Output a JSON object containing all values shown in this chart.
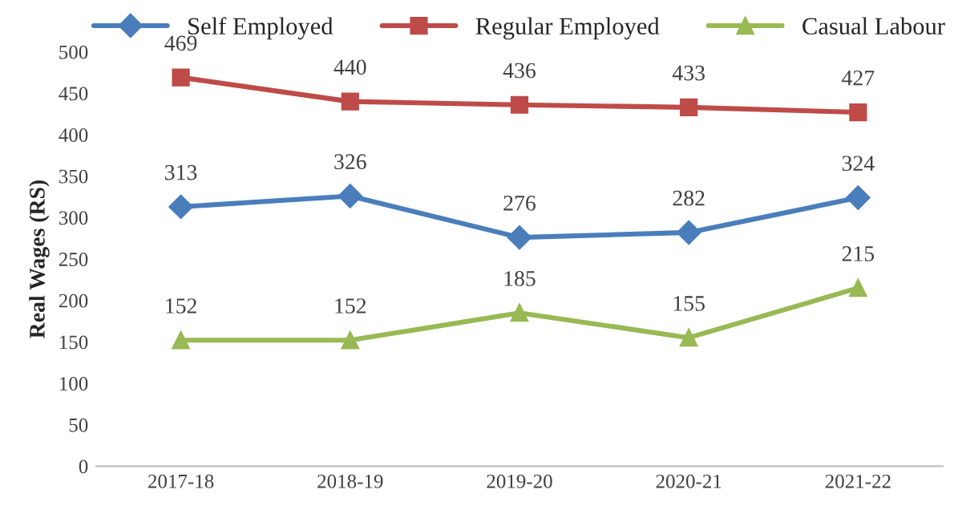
{
  "chart_data": {
    "type": "line",
    "ylabel": "Real Wages (RS)",
    "categories": [
      "2017-18",
      "2018-19",
      "2019-20",
      "2020-21",
      "2021-22"
    ],
    "series": [
      {
        "name": "Self Employed",
        "color": "#4a7ebb",
        "marker": "diamond",
        "values": [
          313,
          326,
          276,
          282,
          324
        ]
      },
      {
        "name": "Regular Employed",
        "color": "#be4b48",
        "marker": "square",
        "values": [
          469,
          440,
          436,
          433,
          427
        ]
      },
      {
        "name": "Casual Labour",
        "color": "#98b954",
        "marker": "triangle",
        "values": [
          152,
          152,
          185,
          155,
          215
        ]
      }
    ],
    "ylim": [
      0,
      500
    ],
    "yticks": [
      0,
      50,
      100,
      150,
      200,
      250,
      300,
      350,
      400,
      450,
      500
    ],
    "grid": false,
    "legend": "top",
    "data_labels": true,
    "line_style": "solid"
  }
}
